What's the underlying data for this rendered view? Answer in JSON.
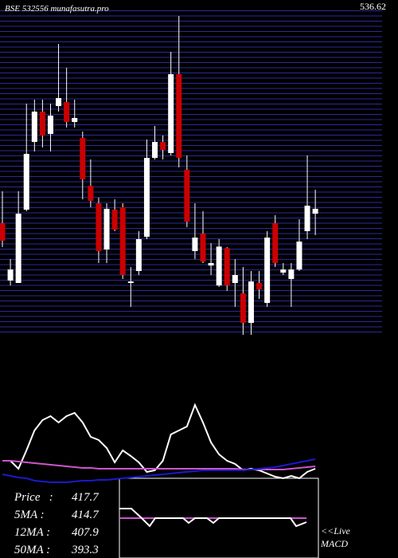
{
  "chart_data": {
    "type": "candlestick",
    "title": "BSE 532556 munafasutra.pro",
    "ylim": [
      344.8,
      540.3
    ],
    "yticks": [
      536.62
    ],
    "colors": {
      "up": "#ffffff",
      "down": "#cc0000",
      "grid": "#2a2a9a"
    },
    "candles": [
      {
        "open": 411.5,
        "high": 429.9,
        "low": 397.7,
        "close": 401.4
      },
      {
        "open": 378.4,
        "high": 390.8,
        "low": 375.6,
        "close": 384.8
      },
      {
        "open": 377.0,
        "high": 429.9,
        "low": 377.0,
        "close": 417.0
      },
      {
        "open": 419.3,
        "high": 480.5,
        "low": 418.4,
        "close": 451.5
      },
      {
        "open": 458.4,
        "high": 482.8,
        "low": 452.9,
        "close": 475.9
      },
      {
        "open": 475.9,
        "high": 482.8,
        "low": 455.2,
        "close": 462.1
      },
      {
        "open": 463.0,
        "high": 480.5,
        "low": 452.9,
        "close": 473.6
      },
      {
        "open": 479.1,
        "high": 515.0,
        "low": 475.9,
        "close": 483.7
      },
      {
        "open": 481.4,
        "high": 501.2,
        "low": 466.7,
        "close": 469.9
      },
      {
        "open": 469.9,
        "high": 482.8,
        "low": 466.7,
        "close": 472.2
      },
      {
        "open": 460.7,
        "high": 464.4,
        "low": 425.3,
        "close": 436.8
      },
      {
        "open": 433.1,
        "high": 448.3,
        "low": 420.7,
        "close": 424.4
      },
      {
        "open": 423.0,
        "high": 426.2,
        "low": 388.5,
        "close": 395.4
      },
      {
        "open": 396.3,
        "high": 423.0,
        "low": 388.5,
        "close": 419.8
      },
      {
        "open": 419.3,
        "high": 425.3,
        "low": 406.9,
        "close": 407.8
      },
      {
        "open": 420.7,
        "high": 423.0,
        "low": 379.3,
        "close": 381.6
      },
      {
        "open": 377.0,
        "high": 386.2,
        "low": 363.2,
        "close": 377.9
      },
      {
        "open": 383.9,
        "high": 406.9,
        "low": 381.6,
        "close": 402.3
      },
      {
        "open": 403.7,
        "high": 459.8,
        "low": 402.3,
        "close": 449.2
      },
      {
        "open": 449.2,
        "high": 467.6,
        "low": 448.3,
        "close": 458.4
      },
      {
        "open": 458.4,
        "high": 462.1,
        "low": 448.3,
        "close": 453.8
      },
      {
        "open": 452.0,
        "high": 510.4,
        "low": 450.6,
        "close": 497.5
      },
      {
        "open": 497.5,
        "high": 531.1,
        "low": 443.7,
        "close": 449.2
      },
      {
        "open": 442.3,
        "high": 450.6,
        "low": 409.2,
        "close": 412.4
      },
      {
        "open": 395.4,
        "high": 423.0,
        "low": 390.8,
        "close": 403.2
      },
      {
        "open": 405.5,
        "high": 418.4,
        "low": 388.5,
        "close": 389.4
      },
      {
        "open": 387.1,
        "high": 400.0,
        "low": 381.6,
        "close": 388.5
      },
      {
        "open": 375.6,
        "high": 402.3,
        "low": 374.7,
        "close": 398.0
      },
      {
        "open": 397.1,
        "high": 397.7,
        "low": 372.4,
        "close": 375.6
      },
      {
        "open": 377.0,
        "high": 390.8,
        "low": 363.2,
        "close": 381.6
      },
      {
        "open": 371.0,
        "high": 386.2,
        "low": 347.1,
        "close": 354.0
      },
      {
        "open": 354.0,
        "high": 383.9,
        "low": 347.1,
        "close": 377.9
      },
      {
        "open": 377.0,
        "high": 383.9,
        "low": 367.8,
        "close": 373.3
      },
      {
        "open": 365.5,
        "high": 406.9,
        "low": 363.2,
        "close": 403.2
      },
      {
        "open": 411.5,
        "high": 416.1,
        "low": 386.2,
        "close": 388.5
      },
      {
        "open": 383.0,
        "high": 388.5,
        "low": 381.6,
        "close": 384.8
      },
      {
        "open": 379.3,
        "high": 388.5,
        "low": 363.2,
        "close": 384.8
      },
      {
        "open": 384.8,
        "high": 413.8,
        "low": 383.9,
        "close": 400.9
      },
      {
        "open": 406.9,
        "high": 450.6,
        "low": 402.3,
        "close": 421.6
      },
      {
        "open": 417.0,
        "high": 430.8,
        "low": 404.6,
        "close": 419.8
      }
    ],
    "indicator": {
      "ylim": [
        -10,
        110
      ],
      "series": [
        {
          "color": "#ffffff",
          "values": [
            22,
            22,
            12,
            35,
            60,
            73,
            78,
            70,
            78,
            82,
            70,
            52,
            48,
            38,
            20,
            35,
            28,
            20,
            8,
            10,
            22,
            55,
            60,
            65,
            92,
            70,
            45,
            30,
            22,
            18,
            10,
            12,
            10,
            6,
            2,
            0,
            3,
            0,
            8,
            12
          ]
        },
        {
          "color": "#cc55cc",
          "values": [
            22,
            22,
            21,
            20,
            19,
            18,
            17,
            16,
            15,
            14,
            13,
            13,
            12,
            12,
            12,
            12,
            12,
            12,
            12,
            12,
            12,
            12,
            12,
            12,
            12,
            12,
            12,
            12,
            12,
            12,
            11,
            11,
            11,
            11,
            11,
            11,
            12,
            13,
            14,
            15
          ]
        },
        {
          "color": "#1a1acc",
          "values": [
            5,
            3,
            1,
            0,
            -3,
            -4,
            -5,
            -5,
            -5,
            -4,
            -3,
            -3,
            -2,
            -2,
            -1,
            0,
            1,
            2,
            3,
            4,
            5,
            6,
            7,
            8,
            9,
            10,
            10,
            10,
            10,
            10,
            10,
            11,
            12,
            13,
            14,
            16,
            18,
            20,
            22,
            24
          ]
        }
      ]
    },
    "stats": [
      {
        "label": "Price   :",
        "value": 417.7
      },
      {
        "label": "5MA :",
        "value": 414.7
      },
      {
        "label": "12MA :",
        "value": 407.9
      },
      {
        "label": "50MA :",
        "value": 393.3
      }
    ],
    "live": [
      "<<Live",
      "MACD"
    ]
  }
}
